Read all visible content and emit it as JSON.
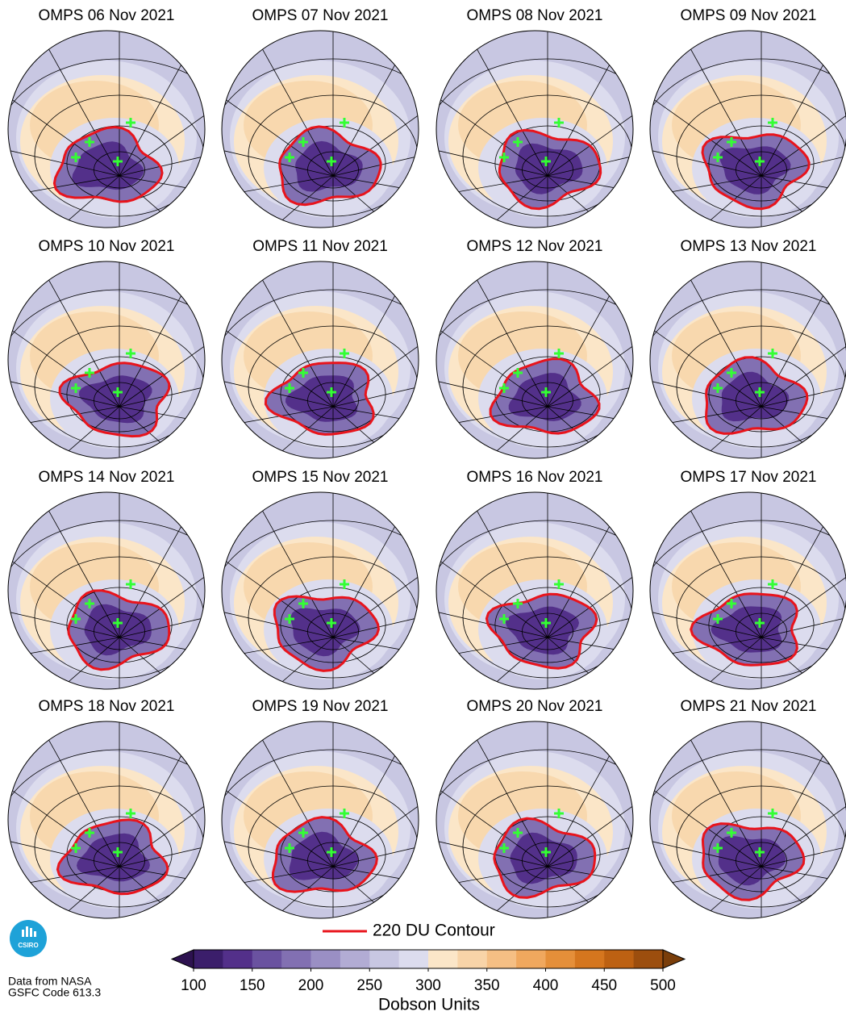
{
  "panels": [
    {
      "title": "OMPS 06 Nov 2021"
    },
    {
      "title": "OMPS 07 Nov 2021"
    },
    {
      "title": "OMPS 08 Nov 2021"
    },
    {
      "title": "OMPS 09 Nov 2021"
    },
    {
      "title": "OMPS 10 Nov 2021"
    },
    {
      "title": "OMPS 11 Nov 2021"
    },
    {
      "title": "OMPS 12 Nov 2021"
    },
    {
      "title": "OMPS 13 Nov 2021"
    },
    {
      "title": "OMPS 14 Nov 2021"
    },
    {
      "title": "OMPS 15 Nov 2021"
    },
    {
      "title": "OMPS 16 Nov 2021"
    },
    {
      "title": "OMPS 17 Nov 2021"
    },
    {
      "title": "OMPS 18 Nov 2021"
    },
    {
      "title": "OMPS 19 Nov 2021"
    },
    {
      "title": "OMPS 20 Nov 2021"
    },
    {
      "title": "OMPS 21 Nov 2021"
    }
  ],
  "legend": {
    "label": "220 DU Contour",
    "color": "#e8141c"
  },
  "colorbar": {
    "label": "Dobson Units",
    "range": [
      100,
      500
    ],
    "ticks": [
      100,
      150,
      200,
      250,
      300,
      350,
      400,
      450,
      500
    ],
    "colors": [
      "#3b1e6b",
      "#53308a",
      "#6a52a0",
      "#8270b2",
      "#9a8fc4",
      "#b2acd4",
      "#c8c7e2",
      "#dcdcee",
      "#fbe6c8",
      "#f8d4a8",
      "#f5bf84",
      "#f0a85e",
      "#e58f39",
      "#d5761e",
      "#bd6112",
      "#9c4e0e"
    ],
    "under_color": "#2d1250",
    "over_color": "#7a3e0a"
  },
  "logo": {
    "text": "CSIRO"
  },
  "credit": {
    "line1": "Data from NASA",
    "line2": "GSFC Code 613.3"
  }
}
